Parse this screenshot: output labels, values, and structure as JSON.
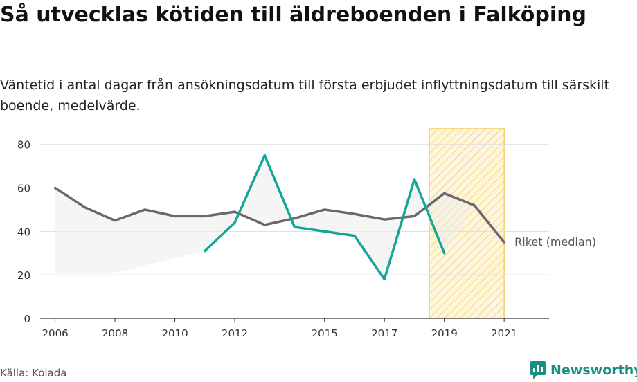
{
  "title": "Så utvecklas kötiden till äldreboenden i Falköping",
  "subtitle": "Väntetid i antal dagar från ansökningsdatum till första erbjudet inflyttningsdatum till särskilt boende, medelvärde.",
  "source": "Källa: Kolada",
  "brand": "Newsworthy",
  "colors": {
    "falkoping": "#14a597",
    "riket": "#6a686c",
    "band": "#ededed",
    "highlight": "#f2c94c",
    "grid": "#dddddd",
    "brand": "#1a8f80"
  },
  "chart_data": {
    "type": "line",
    "ylim": [
      0,
      85
    ],
    "xlim": [
      2005.5,
      2022.5
    ],
    "yticks": [
      0,
      20,
      40,
      60,
      80
    ],
    "xticks": [
      2006,
      2008,
      2010,
      2012,
      2015,
      2017,
      2019,
      2021
    ],
    "grid": true,
    "highlight_range": [
      2018.5,
      2021
    ],
    "series": [
      {
        "name": "Riket (median)",
        "x": [
          2006,
          2007,
          2008,
          2009,
          2010,
          2011,
          2012,
          2013,
          2014,
          2015,
          2016,
          2017,
          2018,
          2019,
          2020,
          2021
        ],
        "values": [
          60,
          51,
          45,
          50,
          47,
          47,
          49,
          43,
          46,
          50,
          48,
          45.5,
          47,
          57.5,
          52,
          35
        ]
      },
      {
        "name": "",
        "x": [
          2011,
          2012,
          2013,
          2014,
          2015,
          2016,
          2017,
          2018,
          2019
        ],
        "values": [
          31,
          44,
          75,
          42,
          40,
          38,
          18,
          64,
          30
        ]
      }
    ],
    "band": {
      "x": [
        2006,
        2008,
        2011
      ],
      "lower": [
        21,
        21,
        31
      ]
    }
  }
}
